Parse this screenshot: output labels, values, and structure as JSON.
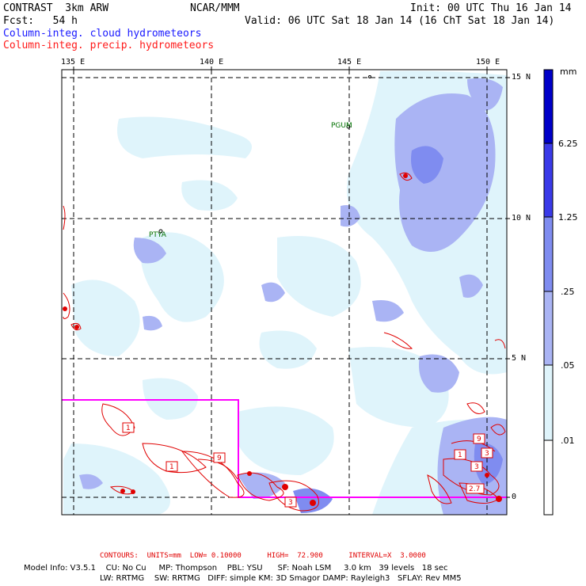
{
  "header": {
    "model": "CONTRAST  3km ARW",
    "org": "NCAR/MMM",
    "init": "Init: 00 UTC Thu 16 Jan 14",
    "fcst": "Fcst:   54 h",
    "valid": "Valid: 06 UTC Sat 18 Jan 14 (16 ChT Sat 18 Jan 14)",
    "field1": "Column-integ. cloud hydrometeors",
    "field2": "Column-integ. precip. hydrometeors"
  },
  "map": {
    "lon_labels": [
      "135 E",
      "140 E",
      "145 E",
      "150 E"
    ],
    "lat_labels": [
      "15 N",
      "10 N",
      "5 N",
      "0"
    ],
    "places": [
      {
        "name": "PGUM",
        "color": "#007000"
      },
      {
        "name": "PTYA",
        "color": "#007000"
      }
    ],
    "contour_labels": [
      "1",
      "1",
      "9",
      "3",
      "3",
      "9",
      "1",
      "3",
      "2.7"
    ],
    "colors": {
      "frame": "#000000",
      "grid": "#000000",
      "box": "#ff00ff",
      "contour": "#e00000",
      "cloud_light": "#dff4fb",
      "cloud_mid": "#aab4f4",
      "cloud_dark": "#7f8cf0"
    }
  },
  "legend": {
    "unit": "mm",
    "levels": [
      "6.25",
      "1.25",
      ".25",
      ".05",
      ".01"
    ],
    "colors": [
      "#0000c8",
      "#3a3ae8",
      "#7f8cf0",
      "#aab4f4",
      "#dff4fb",
      "#ffffff"
    ]
  },
  "footer": {
    "contours": "CONTOURS:  UNITS=mm  LOW= 0.10000      HIGH=  72.900      INTERVAL=X  3.0000",
    "info1": "Model Info: V3.5.1    CU: No Cu     MP: Thompson    PBL: YSU      SF: Noah LSM     3.0 km   39 levels   18 sec",
    "info2": "LW: RRTMG    SW: RRTMG   DIFF: simple KM: 3D Smagor DAMP: Rayleigh3   SFLAY: Rev MM5"
  }
}
